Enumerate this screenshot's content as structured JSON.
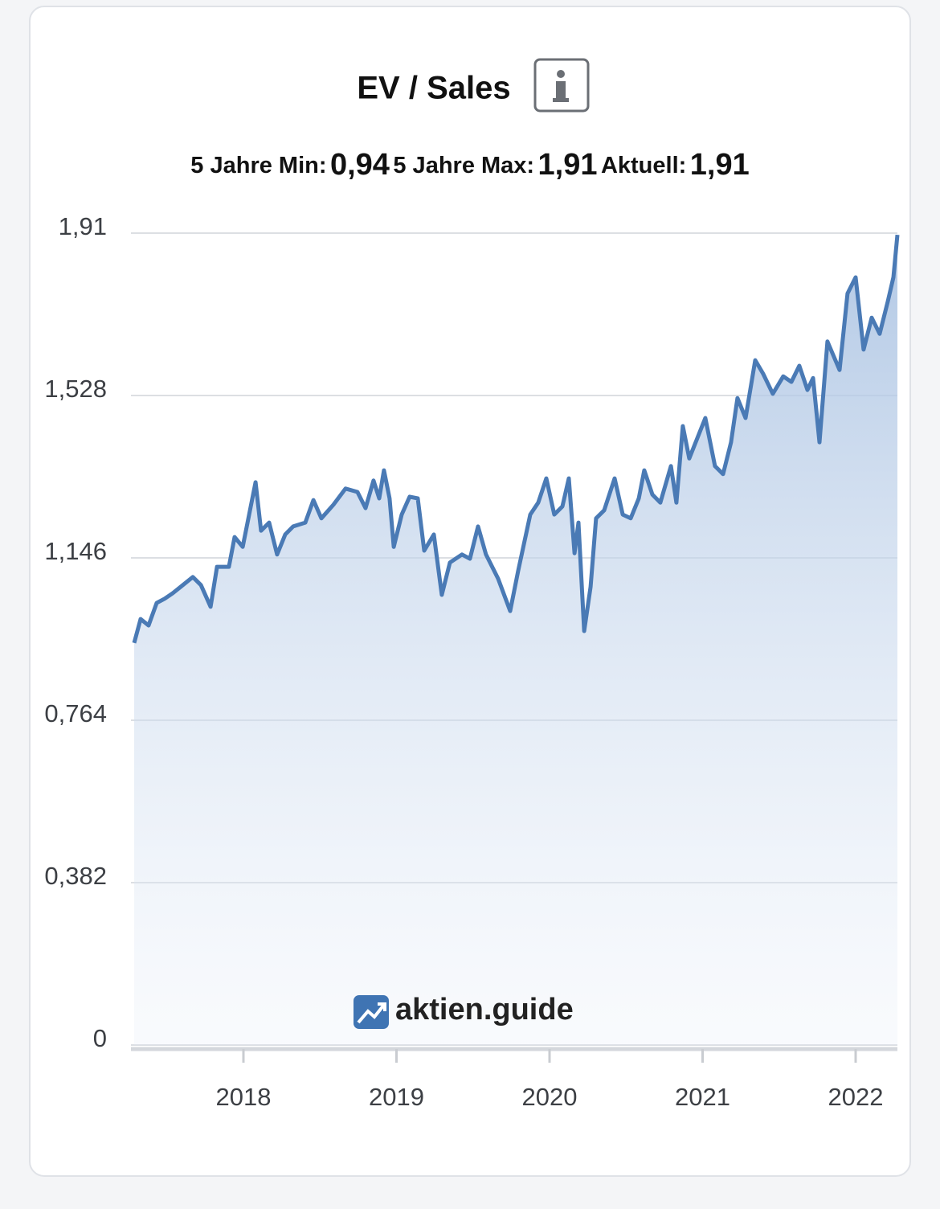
{
  "header": {
    "title": "EV / Sales",
    "stats": [
      {
        "label": "5 Jahre Min:",
        "value": "0,94"
      },
      {
        "label": "5 Jahre Max:",
        "value": "1,91"
      },
      {
        "label": "Aktuell:",
        "value": "1,91"
      }
    ]
  },
  "watermark": "aktien.guide",
  "chart_data": {
    "type": "area",
    "color": "#4a7ab5",
    "x": [
      2017.286,
      2017.328,
      2017.38,
      2017.433,
      2017.485,
      2017.538,
      2017.59,
      2017.669,
      2017.722,
      2017.785,
      2017.827,
      2017.905,
      2017.942,
      2017.995,
      2018.037,
      2018.079,
      2018.115,
      2018.168,
      2018.22,
      2018.273,
      2018.325,
      2018.404,
      2018.457,
      2018.509,
      2018.588,
      2018.667,
      2018.745,
      2018.798,
      2018.85,
      2018.887,
      2018.918,
      2018.955,
      2018.982,
      2019.034,
      2019.086,
      2019.139,
      2019.181,
      2019.244,
      2019.296,
      2019.349,
      2019.428,
      2019.48,
      2019.533,
      2019.585,
      2019.664,
      2019.743,
      2019.795,
      2019.874,
      2019.926,
      2019.979,
      2020.031,
      2020.084,
      2020.126,
      2020.163,
      2020.189,
      2020.226,
      2020.268,
      2020.304,
      2020.357,
      2020.425,
      2020.478,
      2020.53,
      2020.583,
      2020.619,
      2020.672,
      2020.724,
      2020.793,
      2020.829,
      2020.871,
      2020.913,
      2020.966,
      2021.018,
      2021.081,
      2021.134,
      2021.186,
      2021.228,
      2021.281,
      2021.344,
      2021.396,
      2021.459,
      2021.527,
      2021.58,
      2021.632,
      2021.685,
      2021.722,
      2021.764,
      2021.816,
      2021.895,
      2021.947,
      2022.0,
      2022.052,
      2022.105,
      2022.157,
      2022.21,
      2022.247,
      2022.273
    ],
    "values": [
      0.946,
      1.002,
      0.987,
      1.04,
      1.05,
      1.063,
      1.078,
      1.101,
      1.082,
      1.031,
      1.125,
      1.125,
      1.195,
      1.172,
      1.248,
      1.324,
      1.21,
      1.229,
      1.154,
      1.201,
      1.22,
      1.229,
      1.282,
      1.239,
      1.271,
      1.309,
      1.301,
      1.263,
      1.328,
      1.286,
      1.352,
      1.286,
      1.172,
      1.248,
      1.29,
      1.286,
      1.163,
      1.201,
      1.059,
      1.135,
      1.154,
      1.144,
      1.22,
      1.154,
      1.097,
      1.021,
      1.116,
      1.248,
      1.276,
      1.333,
      1.248,
      1.267,
      1.333,
      1.157,
      1.229,
      0.974,
      1.078,
      1.239,
      1.258,
      1.333,
      1.248,
      1.239,
      1.286,
      1.352,
      1.295,
      1.276,
      1.362,
      1.276,
      1.456,
      1.38,
      1.428,
      1.475,
      1.362,
      1.343,
      1.418,
      1.522,
      1.475,
      1.611,
      1.579,
      1.532,
      1.573,
      1.56,
      1.598,
      1.541,
      1.569,
      1.418,
      1.655,
      1.588,
      1.768,
      1.806,
      1.636,
      1.711,
      1.673,
      1.749,
      1.806,
      1.906
    ],
    "xlim": [
      2017.286,
      2022.273
    ],
    "xticks": [
      2018,
      2019,
      2020,
      2021,
      2022
    ],
    "ylim": [
      0,
      1.91
    ],
    "yticks": [
      0,
      {
        "value": 0.382,
        "label": "0,382"
      },
      {
        "value": 0.764,
        "label": "0,764"
      },
      {
        "value": 1.146,
        "label": "1,146"
      },
      {
        "value": 1.528,
        "label": "1,528"
      },
      {
        "value": 1.91,
        "label": "1,91"
      }
    ],
    "grid": true
  }
}
